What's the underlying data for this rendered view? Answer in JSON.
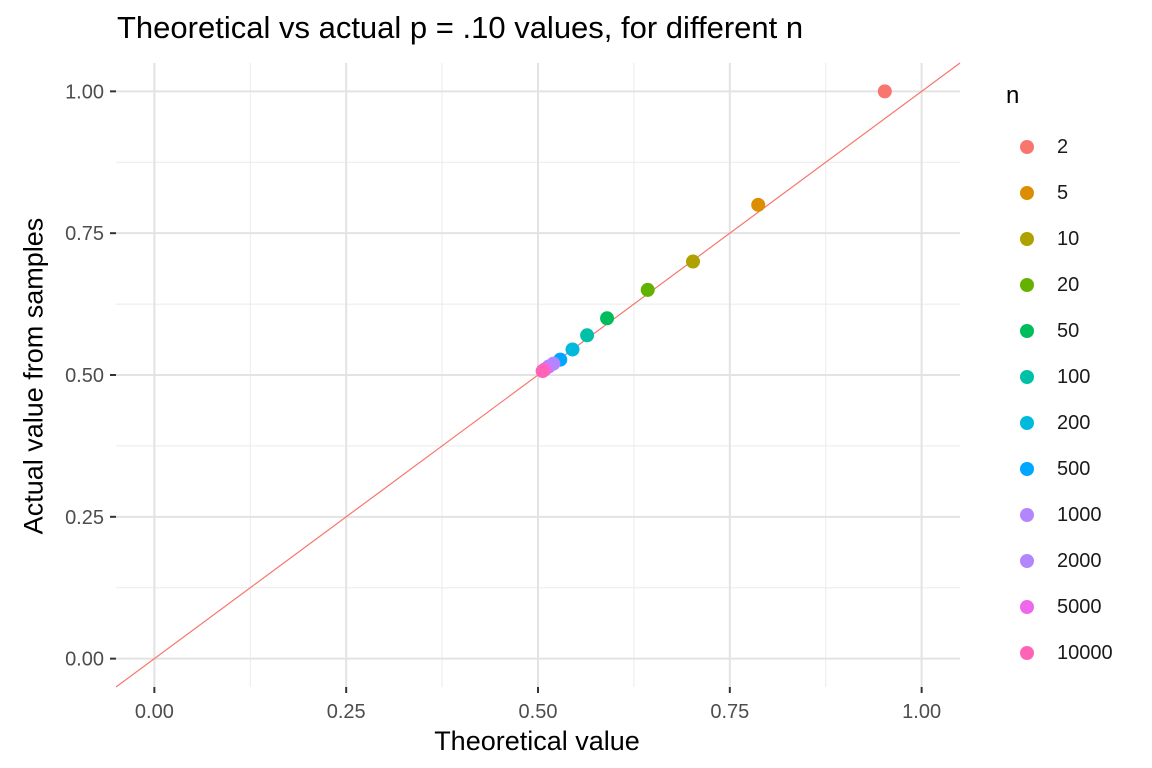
{
  "chart_data": {
    "type": "scatter",
    "title": "Theoretical vs actual p = .10 values, for different n",
    "xlabel": "Theoretical value",
    "ylabel": "Actual value from samples",
    "xlim": [
      -0.05,
      1.05
    ],
    "ylim": [
      -0.05,
      1.05
    ],
    "x_ticks": [
      "0.00",
      "0.25",
      "0.50",
      "0.75",
      "1.00"
    ],
    "y_ticks": [
      "0.00",
      "0.25",
      "0.50",
      "0.75",
      "1.00"
    ],
    "grid": true,
    "legend_title": "n",
    "legend_position": "right",
    "reference_line": {
      "slope": 1,
      "intercept": 0,
      "color": "#F8766D"
    },
    "series": [
      {
        "name": "2",
        "x": 0.952,
        "y": 1.0,
        "color": "#F8766D"
      },
      {
        "name": "5",
        "x": 0.787,
        "y": 0.8,
        "color": "#DB8E00"
      },
      {
        "name": "10",
        "x": 0.702,
        "y": 0.7,
        "color": "#AEA200"
      },
      {
        "name": "20",
        "x": 0.643,
        "y": 0.65,
        "color": "#64B200"
      },
      {
        "name": "50",
        "x": 0.59,
        "y": 0.6,
        "color": "#00BD5C"
      },
      {
        "name": "100",
        "x": 0.564,
        "y": 0.57,
        "color": "#00C1A7"
      },
      {
        "name": "200",
        "x": 0.545,
        "y": 0.545,
        "color": "#00BADE"
      },
      {
        "name": "500",
        "x": 0.529,
        "y": 0.527,
        "color": "#00A6FF"
      },
      {
        "name": "1000",
        "x": 0.52,
        "y": 0.52,
        "color": "#B385FF"
      },
      {
        "name": "2000",
        "x": 0.514,
        "y": 0.515,
        "color": "#B385FF"
      },
      {
        "name": "5000",
        "x": 0.509,
        "y": 0.51,
        "color": "#EF67EB"
      },
      {
        "name": "10000",
        "x": 0.506,
        "y": 0.507,
        "color": "#FF63B6"
      }
    ]
  }
}
